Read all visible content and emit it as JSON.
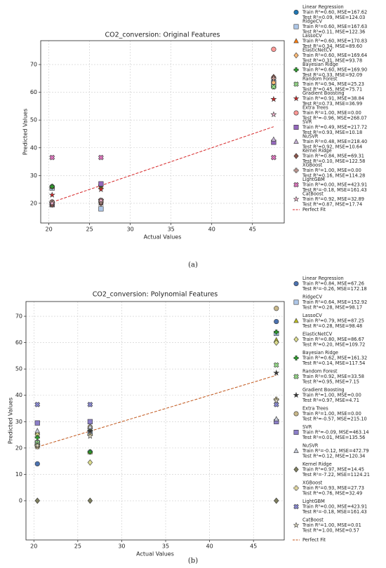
{
  "chart_data": [
    {
      "type": "scatter",
      "title": "CO2_conversion: Original Features",
      "xlabel": "Actual Values",
      "ylabel": "Predicted Values",
      "caption": "(a)",
      "x": [
        20.4,
        26.4,
        47.6
      ],
      "xlim": [
        19.0,
        48.9
      ],
      "ylim": [
        12.9,
        78.6
      ],
      "xticks": [
        20,
        25,
        30,
        35,
        40,
        45
      ],
      "yticks": [
        20,
        30,
        40,
        50,
        60,
        70
      ],
      "grid": true,
      "series": [
        {
          "name": "Linear Regression",
          "marker": "circle",
          "color": "#1f77b4",
          "train": "Train R²=0.60, MSE=167.62",
          "test": "Test  R²=0.09, MSE=124.03",
          "values": [
            26,
            26.5,
            64
          ]
        },
        {
          "name": "RidgeCV",
          "marker": "square",
          "color": "#aec7e8",
          "train": "Train R²=0.60, MSE=167.63",
          "test": "Test  R²=0.11, MSE=122.36",
          "values": [
            25.5,
            18,
            63.5
          ]
        },
        {
          "name": "LassoCV",
          "marker": "triangle",
          "color": "#ff7f0e",
          "train": "Train R²=0.60, MSE=170.83",
          "test": "Test  R²=0.34, MSE=89.60",
          "values": [
            26,
            26,
            64
          ]
        },
        {
          "name": "ElasticNetCV",
          "marker": "diamond",
          "color": "#ffbb78",
          "train": "Train R²=0.60, MSE=169.64",
          "test": "Test  R²=0.31, MSE=93.78",
          "values": [
            26,
            26.5,
            63.5
          ]
        },
        {
          "name": "Bayesian Ridge",
          "marker": "plus",
          "color": "#2ca02c",
          "train": "Train R²=0.60, MSE=169.90",
          "test": "Test  R²=0.33, MSE=92.09",
          "values": [
            26,
            26.5,
            62
          ]
        },
        {
          "name": "Random Forest",
          "marker": "x",
          "color": "#98df8a",
          "train": "Train R²=0.94, MSE=25.23",
          "test": "Test  R²=0.45, MSE=75.71",
          "values": [
            20,
            21,
            62
          ]
        },
        {
          "name": "Gradient Boosting",
          "marker": "star",
          "color": "#d62728",
          "train": "Train R²=0.91, MSE=38.84",
          "test": "Test  R²=0.73, MSE=36.99",
          "values": [
            23,
            25,
            57.5
          ]
        },
        {
          "name": "Extra Trees",
          "marker": "circle",
          "color": "#ff9896",
          "train": "Train R²=1.00, MSE=0.00",
          "test": "Test  R²=-0.96, MSE=268.07",
          "values": [
            20.5,
            21,
            75.5
          ]
        },
        {
          "name": "SVR",
          "marker": "square",
          "color": "#9467bd",
          "train": "Train R²=0.49, MSE=217.72",
          "test": "Test  R²=0.93, MSE=10.18",
          "values": [
            19.5,
            27,
            42
          ]
        },
        {
          "name": "NuSVR",
          "marker": "triangle",
          "color": "#c5b0d5",
          "train": "Train R²=0.48, MSE=218.40",
          "test": "Test  R²=0.92, MSE=10.64",
          "values": [
            19.5,
            20,
            43
          ]
        },
        {
          "name": "Kernel Ridge",
          "marker": "diamond",
          "color": "#8c564b",
          "train": "Train R²=0.84, MSE=69.31",
          "test": "Test  R²=0.10, MSE=122.58",
          "values": [
            19.5,
            20,
            65.5
          ]
        },
        {
          "name": "XGBoost",
          "marker": "plus",
          "color": "#c49c94",
          "train": "Train R²=1.00, MSE=0.00",
          "test": "Test  R²=0.16, MSE=114.28",
          "values": [
            20.5,
            20.5,
            65
          ]
        },
        {
          "name": "LightGBM",
          "marker": "x",
          "color": "#e377c2",
          "train": "Train R²=0.00, MSE=423.91",
          "test": "Test  R²=-0.18, MSE=161.43",
          "values": [
            36.5,
            36.5,
            36.5
          ]
        },
        {
          "name": "CatBoost",
          "marker": "star",
          "color": "#f7b6d2",
          "train": "Train R²=0.92, MSE=32.89",
          "test": "Test  R²=0.87, MSE=17.74",
          "values": [
            20,
            21,
            52
          ]
        }
      ],
      "perfect_fit": {
        "name": "Perfect Fit",
        "color": "#d62728",
        "x": [
          20.4,
          47.6
        ],
        "values": [
          20.4,
          47.6
        ]
      }
    },
    {
      "type": "scatter",
      "title": "CO2_conversion: Polynomial Features",
      "xlabel": "Actual Values",
      "ylabel": "Predicted Values",
      "caption": "(b)",
      "x": [
        20.4,
        26.4,
        47.6
      ],
      "xlim": [
        19.1,
        48.5
      ],
      "ylim": [
        -14.9,
        75.6
      ],
      "xticks": [
        20,
        25,
        30,
        35,
        40,
        45
      ],
      "yticks": [
        0,
        10,
        20,
        30,
        40,
        50,
        60,
        70
      ],
      "grid": true,
      "series": [
        {
          "name": "Linear Regression",
          "marker": "circle",
          "color": "#4c72b0",
          "train": "Train R²=0.84, MSE=67.26",
          "test": "Test  R²=-0.26, MSE=172.18",
          "values": [
            14,
            18.5,
            68
          ]
        },
        {
          "name": "RidgeCV",
          "marker": "square",
          "color": "#aec7e8",
          "train": "Train R²=0.64, MSE=152.92",
          "test": "Test  R²=0.28, MSE=98.17",
          "values": [
            22,
            26,
            63.5
          ]
        },
        {
          "name": "LassoCV",
          "marker": "triangle",
          "color": "#bcbd22",
          "train": "Train R²=0.79, MSE=87.25",
          "test": "Test  R²=0.28, MSE=98.48",
          "values": [
            26,
            18.5,
            61
          ]
        },
        {
          "name": "ElasticNetCV",
          "marker": "diamond",
          "color": "#dbdb8d",
          "train": "Train R²=0.80, MSE=86.67",
          "test": "Test  R²=0.20, MSE=109.72",
          "values": [
            25,
            14.5,
            60
          ]
        },
        {
          "name": "Bayesian Ridge",
          "marker": "plus",
          "color": "#2ca02c",
          "train": "Train R²=0.62, MSE=161.32",
          "test": "Test  R²=0.14, MSE=117.54",
          "values": [
            24,
            18.5,
            64
          ]
        },
        {
          "name": "Random Forest",
          "marker": "x",
          "color": "#98df8a",
          "train": "Train R²=0.92, MSE=33.58",
          "test": "Test  R²=0.95, MSE=7.15",
          "values": [
            22,
            27,
            51.5
          ]
        },
        {
          "name": "Gradient Boosting",
          "marker": "star",
          "color": "#3a3a3a",
          "train": "Train R²=1.00, MSE=0.00",
          "test": "Test  R²=0.97, MSE=4.71",
          "values": [
            20.5,
            26.5,
            48.5
          ]
        },
        {
          "name": "Extra Trees",
          "marker": "circle",
          "color": "#c8b88a",
          "train": "Train R²=1.00, MSE=0.00",
          "test": "Test  R²=-0.57, MSE=215.10",
          "values": [
            20.5,
            28,
            73
          ]
        },
        {
          "name": "SVR",
          "marker": "square",
          "color": "#8c7fc9",
          "train": "Train R²=-0.09, MSE=463.14",
          "test": "Test  R²=0.01, MSE=135.56",
          "values": [
            29.5,
            30,
            30
          ]
        },
        {
          "name": "NuSVR",
          "marker": "triangle",
          "color": "#c6cbd8",
          "train": "Train R²=-0.12, MSE=472.79",
          "test": "Test  R²=0.12, MSE=120.34",
          "values": [
            26.5,
            28,
            31
          ]
        },
        {
          "name": "Kernel Ridge",
          "marker": "diamond",
          "color": "#7f7f5f",
          "train": "Train R²=0.97, MSE=14.45",
          "test": "Test  R²=-7.22, MSE=1124.21",
          "values": [
            0,
            0,
            0
          ]
        },
        {
          "name": "XGBoost",
          "marker": "plus",
          "color": "#f3e6a6",
          "train": "Train R²=0.93, MSE=27.73",
          "test": "Test  R²=0.76, MSE=32.49",
          "values": [
            21,
            25,
            38.5
          ]
        },
        {
          "name": "LightGBM",
          "marker": "x",
          "color": "#8c8cd8",
          "train": "Train R²=0.00, MSE=423.91",
          "test": "Test  R²=-0.18, MSE=161.43",
          "values": [
            36.5,
            36.5,
            36.5
          ]
        },
        {
          "name": "CatBoost",
          "marker": "star",
          "color": "#e6e0c8",
          "train": "Train R²=1.00, MSE=0.01",
          "test": "Test  R²=1.00, MSE=0.57",
          "values": [
            21,
            24.5,
            38
          ]
        }
      ],
      "perfect_fit": {
        "name": "Perfect Fit",
        "color": "#c0561b",
        "x": [
          20.4,
          47.6
        ],
        "values": [
          20.4,
          47.6
        ]
      }
    }
  ]
}
